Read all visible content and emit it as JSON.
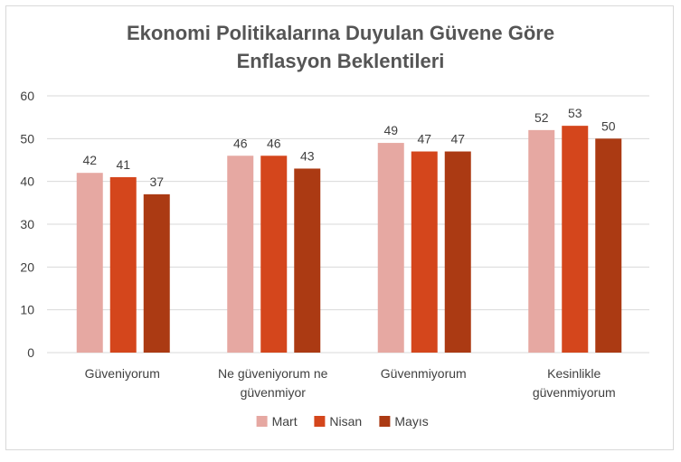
{
  "chart_data": {
    "type": "bar",
    "title_lines": [
      "Ekonomi Politikalarına Duyulan Güvene Göre",
      "Enflasyon Beklentileri"
    ],
    "categories": [
      [
        "Güveniyorum"
      ],
      [
        "Ne güveniyorum ne",
        "güvenmiyor"
      ],
      [
        "Güvenmiyorum"
      ],
      [
        "Kesinlikle",
        "güvenmiyorum"
      ]
    ],
    "series": [
      {
        "name": "Mart",
        "color": "#e6a8a2",
        "values": [
          42,
          46,
          49,
          52
        ]
      },
      {
        "name": "Nisan",
        "color": "#d4461c",
        "values": [
          41,
          46,
          47,
          53
        ]
      },
      {
        "name": "Mayıs",
        "color": "#ab3a13",
        "values": [
          37,
          43,
          47,
          50
        ]
      }
    ],
    "ylim": [
      0,
      60
    ],
    "yticks": [
      0,
      10,
      20,
      30,
      40,
      50,
      60
    ],
    "grid": true,
    "legend_position": "bottom",
    "data_labels": true
  }
}
